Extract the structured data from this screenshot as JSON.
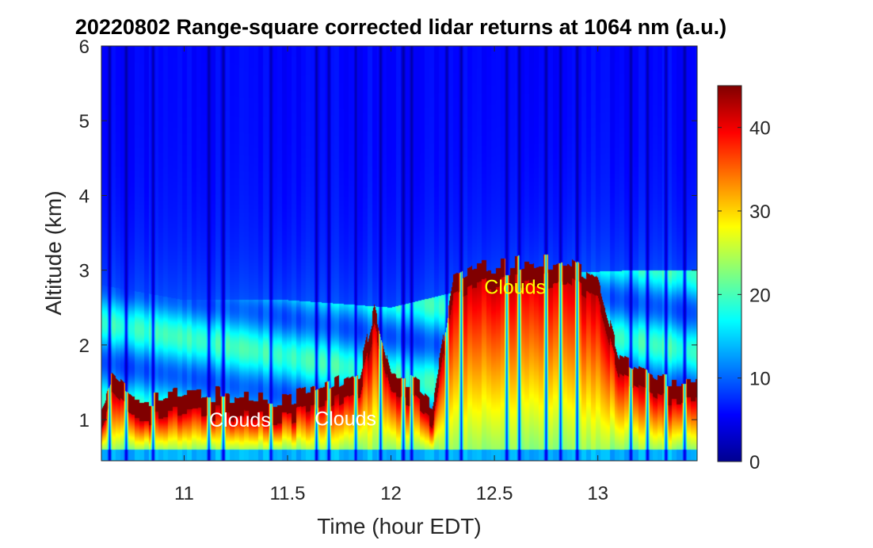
{
  "chart_data": {
    "type": "heatmap",
    "title": "20220802  Range-square corrected lidar returns at 1064 nm (a.u.)",
    "xlabel": "Time (hour EDT)",
    "ylabel": "Altitude (km)",
    "xlim": [
      10.6,
      13.48
    ],
    "ylim": [
      0.45,
      6
    ],
    "xticks": [
      11,
      11.5,
      12,
      12.5,
      13
    ],
    "xtick_labels": [
      "11",
      "11.5",
      "12",
      "12.5",
      "13"
    ],
    "yticks": [
      1,
      2,
      3,
      4,
      5,
      6
    ],
    "ytick_labels": [
      "1",
      "2",
      "3",
      "4",
      "5",
      "6"
    ],
    "colorbar": {
      "colormap": "jet",
      "clim": [
        0,
        45
      ],
      "ticks": [
        0,
        10,
        20,
        30,
        40
      ],
      "tick_labels": [
        "0",
        "10",
        "20",
        "30",
        "40"
      ]
    },
    "annotations": [
      {
        "text": "Clouds",
        "x": 11.27,
        "y": 1.0,
        "color": "#ffffff"
      },
      {
        "text": "Clouds",
        "x": 11.78,
        "y": 1.02,
        "color": "#ffffff"
      },
      {
        "text": "Clouds",
        "x": 12.6,
        "y": 2.78,
        "color": "#ffff00"
      }
    ],
    "features": {
      "cloud_base": [
        {
          "x": 10.6,
          "y": 1.0
        },
        {
          "x": 10.65,
          "y": 1.3
        },
        {
          "x": 10.75,
          "y": 1.05
        },
        {
          "x": 10.9,
          "y": 1.05
        },
        {
          "x": 11.1,
          "y": 1.1
        },
        {
          "x": 11.3,
          "y": 1.05
        },
        {
          "x": 11.5,
          "y": 1.05
        },
        {
          "x": 11.7,
          "y": 1.2
        },
        {
          "x": 11.85,
          "y": 1.4
        },
        {
          "x": 11.92,
          "y": 2.2
        },
        {
          "x": 12.0,
          "y": 1.3
        },
        {
          "x": 12.1,
          "y": 1.25
        },
        {
          "x": 12.2,
          "y": 1.0
        },
        {
          "x": 12.3,
          "y": 2.6
        },
        {
          "x": 12.4,
          "y": 2.75
        },
        {
          "x": 12.55,
          "y": 2.8
        },
        {
          "x": 12.7,
          "y": 2.85
        },
        {
          "x": 12.85,
          "y": 2.9
        },
        {
          "x": 13.0,
          "y": 2.6
        },
        {
          "x": 13.1,
          "y": 1.6
        },
        {
          "x": 13.3,
          "y": 1.3
        },
        {
          "x": 13.48,
          "y": 1.3
        }
      ],
      "aerosol_top": [
        {
          "x": 10.6,
          "y": 2.8
        },
        {
          "x": 11.0,
          "y": 2.6
        },
        {
          "x": 11.5,
          "y": 2.6
        },
        {
          "x": 12.0,
          "y": 2.5
        },
        {
          "x": 12.3,
          "y": 2.7
        },
        {
          "x": 12.7,
          "y": 2.95
        },
        {
          "x": 13.2,
          "y": 3.0
        },
        {
          "x": 13.48,
          "y": 3.0
        }
      ],
      "dark_columns": [
        10.64,
        10.72,
        10.85,
        11.12,
        11.19,
        11.42,
        11.64,
        11.7,
        11.83,
        11.95,
        12.06,
        12.1,
        12.27,
        12.34,
        12.56,
        12.62,
        12.75,
        12.82,
        12.9,
        13.16,
        13.24,
        13.33,
        13.42
      ]
    }
  }
}
